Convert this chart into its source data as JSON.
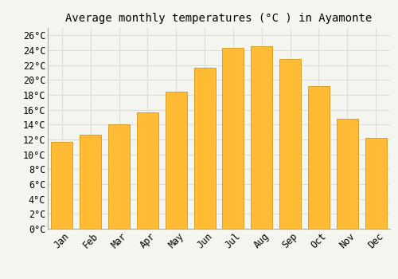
{
  "title": "Average monthly temperatures (°C ) in Ayamonte",
  "months": [
    "Jan",
    "Feb",
    "Mar",
    "Apr",
    "May",
    "Jun",
    "Jul",
    "Aug",
    "Sep",
    "Oct",
    "Nov",
    "Dec"
  ],
  "values": [
    11.7,
    12.6,
    14.0,
    15.6,
    18.4,
    21.6,
    24.3,
    24.5,
    22.8,
    19.2,
    14.8,
    12.2
  ],
  "bar_color_top": "#FFBB33",
  "bar_color_bottom": "#FF9900",
  "bar_edge_color": "#CC8800",
  "background_color": "#F5F5F0",
  "plot_bg_color": "#F5F5F0",
  "grid_color": "#DDDDDD",
  "ylim": [
    0,
    27
  ],
  "ytick_step": 2,
  "title_fontsize": 10,
  "tick_fontsize": 8.5,
  "font_family": "monospace"
}
